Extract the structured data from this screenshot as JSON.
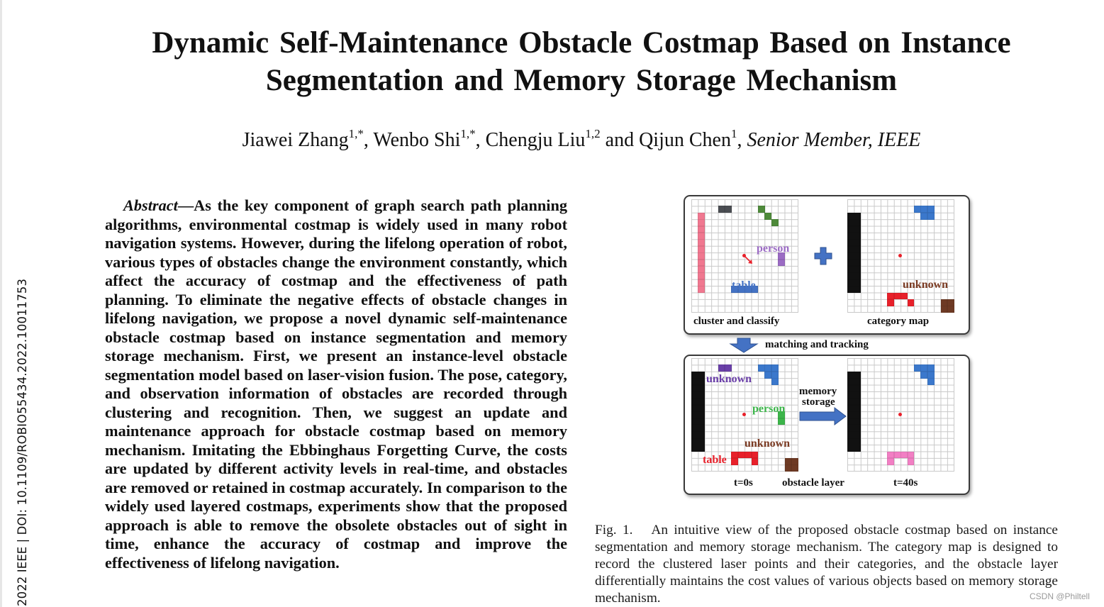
{
  "side_label": "2022 IEEE | DOI: 10.1109/ROBIO55434.2022.10011753",
  "title_line1": "Dynamic Self-Maintenance Obstacle Costmap Based on Instance",
  "title_line2": "Segmentation and Memory Storage Mechanism",
  "authors": [
    {
      "name": "Jiawei Zhang",
      "sup": "1,*"
    },
    {
      "name": "Wenbo Shi",
      "sup": "1,*"
    },
    {
      "name": "Chengju Liu",
      "sup": "1,2"
    },
    {
      "name": "Qijun Chen",
      "sup": "1"
    }
  ],
  "authors_and": "and",
  "authors_suffix": "Senior Member, IEEE",
  "abstract_label": "Abstract",
  "abstract_dash": "—",
  "abstract_text": "As the key component of graph search path planning algorithms, environmental costmap is widely used in many robot navigation systems. However, during the lifelong operation of robot, various types of obstacles change the environment constantly, which affect the accuracy of costmap and the effectiveness of path planning. To eliminate the negative effects of obstacle changes in lifelong navigation, we propose a novel dynamic self-maintenance obstacle costmap based on instance segmentation and memory storage mechanism. First, we present an instance-level obstacle segmentation model based on laser-vision fusion. The pose, category, and observation information of obstacles are recorded through clustering and recognition. Then, we suggest an update and maintenance approach for obstacle costmap based on memory mechanism. Imitating the Ebbinghaus Forgetting Curve, the costs are updated by different activity levels in real-time, and obstacles are removed or retained in costmap accurately. In comparison to the widely used layered costmaps, experiments show that the proposed approach is able to remove the obsolete obstacles out of sight in time, enhance the accuracy of costmap and improve the effectiveness of lifelong navigation.",
  "figure": {
    "top_panel": {
      "left_caption": "cluster and classify",
      "right_caption": "category map",
      "plus_icon": "plus-icon",
      "labels": {
        "person": "person",
        "table": "table",
        "unknown": "unknown"
      }
    },
    "between_label": "matching and tracking",
    "down_arrow_icon": "down-arrow-icon",
    "bottom_panel": {
      "left_caption": "t=0s",
      "center_caption": "obstacle layer",
      "right_caption": "t=40s",
      "arrow_label_1": "memory",
      "arrow_label_2": "storage",
      "labels": {
        "unknown_top": "unknown",
        "person": "person",
        "unknown_bottom": "unknown",
        "table": "table"
      }
    },
    "colors": {
      "pink": "#f07890",
      "darkgray": "#4a4d52",
      "green": "#4e8a3a",
      "purple": "#9b6bc4",
      "blue": "#4472c4",
      "blue2": "#3b78cc",
      "black": "#111111",
      "red": "#e8202a",
      "brown": "#6e3a24",
      "green2": "#3cb54a",
      "purple2": "#6a3fa8",
      "pink2": "#f27fc4",
      "brownlabel": "#7a3a22"
    }
  },
  "caption": {
    "fig_number": "Fig. 1.",
    "text": "An intuitive view of the proposed obstacle costmap based on instance segmentation and memory storage mechanism. The category map is designed to record the clustered laser points and their categories, and the obstacle layer differentially maintains the cost values of various objects based on memory storage mechanism."
  },
  "watermark": "CSDN @Philtell"
}
